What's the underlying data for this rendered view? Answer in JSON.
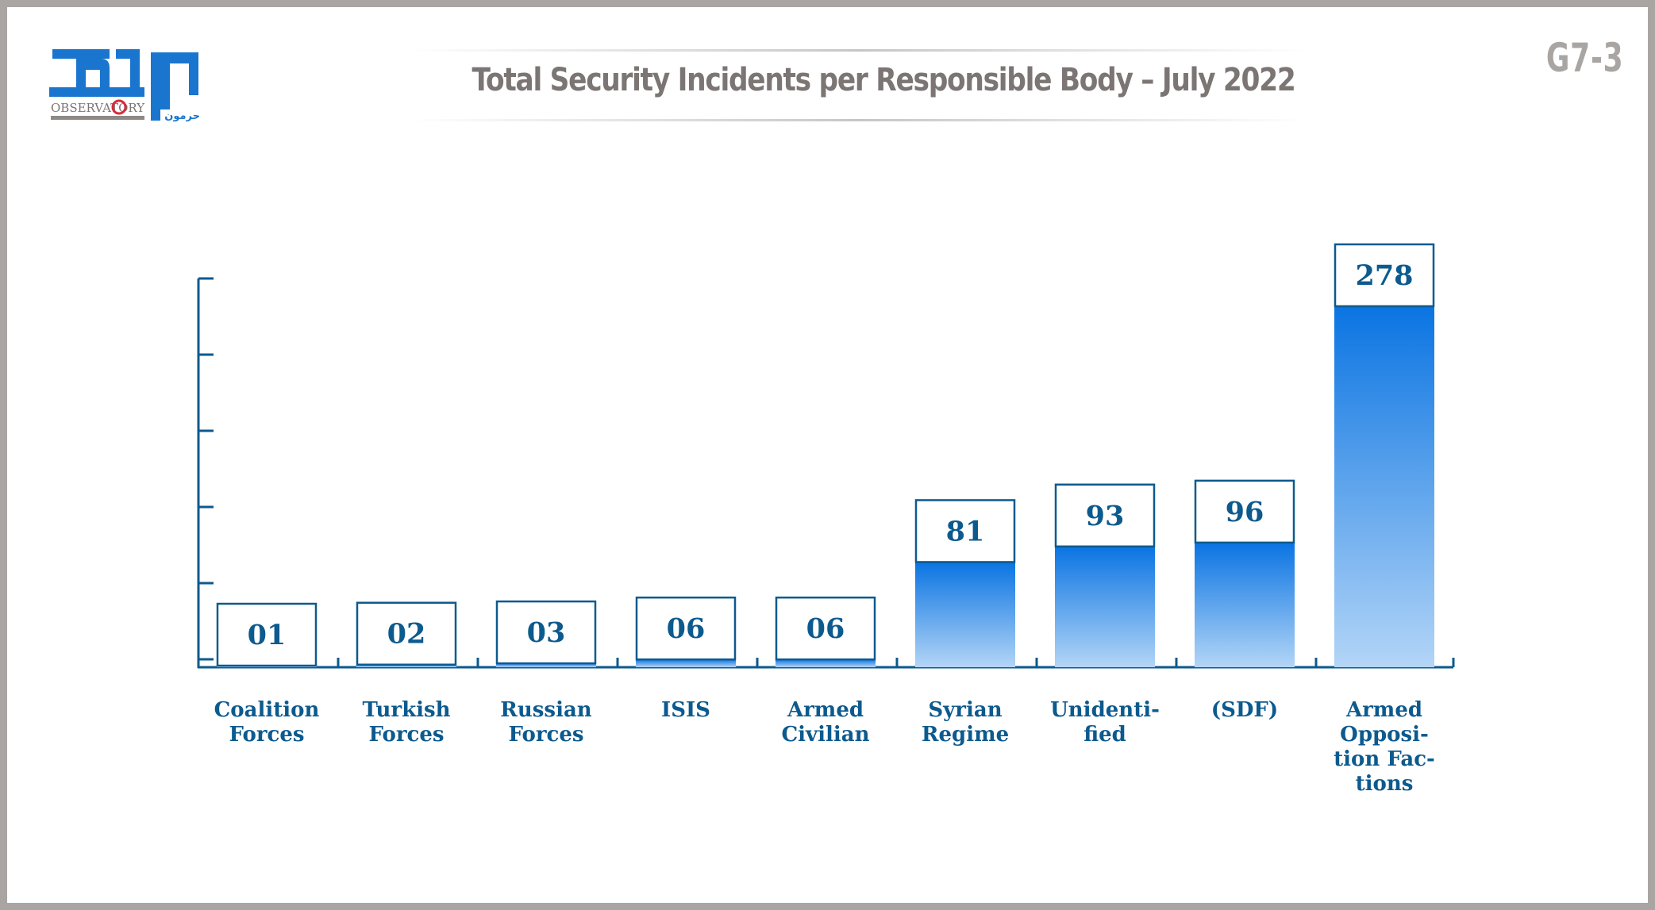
{
  "header": {
    "logo": {
      "name": "Harmoon Observatory logo",
      "arabic_mark": "مرصد",
      "latin_text": "OBSERVATORY",
      "sub_text": "حرمون",
      "brand_color": "#1a75cf"
    },
    "title": "Total Security Incidents per Responsible Body – July 2022",
    "code": "G7-3"
  },
  "colors": {
    "axis": "#0c5a8e",
    "bar_top": "#0a74e2",
    "bar_bottom": "#b3d5f7",
    "text": "#0c5a8e",
    "title": "#7b7573",
    "frame": "#a9a5a2"
  },
  "chart_data": {
    "type": "bar",
    "title": "Total Security Incidents per Responsible Body – July 2022",
    "xlabel": "",
    "ylabel": "",
    "categories": [
      [
        "Coalition",
        "Forces"
      ],
      [
        "Turkish",
        "Forces"
      ],
      [
        "Russian",
        "Forces"
      ],
      [
        "ISIS"
      ],
      [
        "Armed",
        "Civilian"
      ],
      [
        "Syrian",
        "Regime"
      ],
      [
        "Unidenti-",
        "fied"
      ],
      [
        "(SDF)"
      ],
      [
        "Armed",
        "Opposi-",
        "tion Fac-",
        "tions"
      ]
    ],
    "values": [
      1,
      2,
      3,
      6,
      6,
      81,
      93,
      96,
      278
    ],
    "value_labels": [
      "01",
      "02",
      "03",
      "06",
      "06",
      "81",
      "93",
      "96",
      "278"
    ],
    "ylim": [
      0,
      278
    ],
    "y_ticks_count": 7,
    "y_tick_labels_shown": false,
    "grid": false,
    "legend": "none"
  }
}
